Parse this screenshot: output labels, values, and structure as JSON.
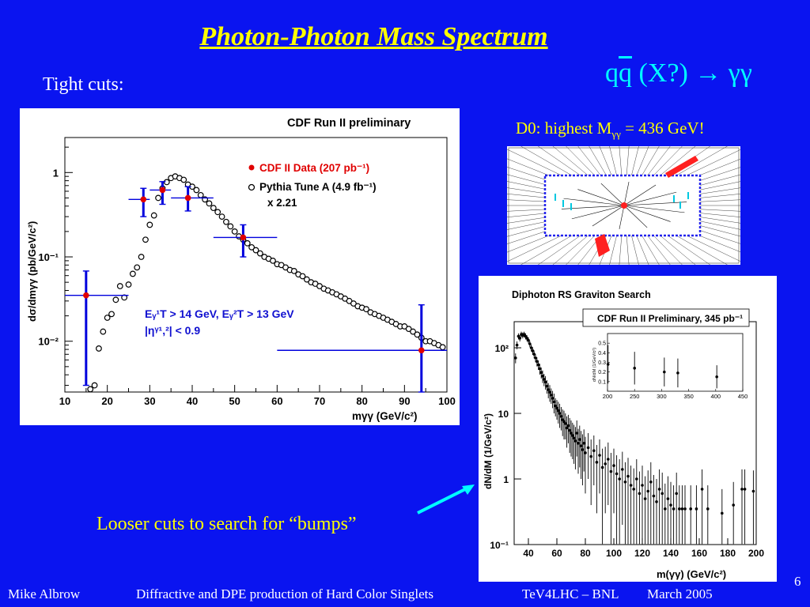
{
  "slide": {
    "title": "Photon-Photon Mass Spectrum",
    "formula": {
      "q": "q",
      "qbar": "q",
      "rest": " (X?) → γγ"
    },
    "tight_cuts": "Tight cuts:",
    "d0_label": {
      "prefix": "D0: highest M",
      "sub": "γγ",
      "suffix": " = 436 GeV!"
    },
    "looser": "Looser cuts to search for “bumps”",
    "page_number": "6",
    "footer": {
      "author": "Mike Albrow",
      "talk": "Diffractive and DPE production of Hard Color Singlets",
      "venue": "TeV4LHC – BNL",
      "date": "March 2005"
    },
    "colors": {
      "background": "#0a14f0",
      "title": "#ffff00",
      "formula": "#00ffff",
      "arrow": "#00ffff"
    }
  },
  "chart_data": [
    {
      "type": "scatter",
      "title": "CDF Run II preliminary",
      "xlabel": "mγγ (GeV/c²)",
      "ylabel": "dσ/dmγγ (pb/GeV/c²)",
      "xlim": [
        10,
        100
      ],
      "ylim": [
        0.0025,
        2.6
      ],
      "log_y": true,
      "xticks": [
        "10",
        "20",
        "30",
        "40",
        "50",
        "60",
        "70",
        "80",
        "90",
        "100"
      ],
      "yticks": [
        {
          "label": "1",
          "v": 1
        },
        {
          "label": "10⁻¹",
          "v": 0.1
        },
        {
          "label": "10⁻²",
          "v": 0.01
        }
      ],
      "legend": {
        "data_label": "CDF II Data (207 pb⁻¹)",
        "mc_label": "Pythia Tune A (4.9 fb⁻¹)",
        "mc_scale": "x 2.21",
        "placement": "top-right"
      },
      "cuts": {
        "line1": "Eᵧ¹T > 14 GeV, Eᵧ²T > 13 GeV",
        "line2": "|ηᵞ¹,²| < 0.9"
      },
      "colors": {
        "data": "#e00000",
        "error_bars": "#0000dd",
        "mc": "#000000",
        "cuts_text": "#1010d0"
      },
      "series": [
        {
          "name": "CDF II Data (207 pb⁻¹)",
          "points": [
            {
              "x": 15,
              "y": 0.035,
              "xlo": 10,
              "xhi": 25,
              "ylo": 0.003,
              "yhi": 0.068
            },
            {
              "x": 28.5,
              "y": 0.48,
              "xlo": 25,
              "xhi": 30,
              "ylo": 0.3,
              "yhi": 0.65
            },
            {
              "x": 33,
              "y": 0.62,
              "xlo": 30,
              "xhi": 35,
              "ylo": 0.42,
              "yhi": 0.78
            },
            {
              "x": 39,
              "y": 0.5,
              "xlo": 35,
              "xhi": 45,
              "ylo": 0.35,
              "yhi": 0.68
            },
            {
              "x": 52,
              "y": 0.17,
              "xlo": 45,
              "xhi": 60,
              "ylo": 0.1,
              "yhi": 0.24
            },
            {
              "x": 94,
              "y": 0.0078,
              "xlo": 60,
              "xhi": 100,
              "ylo": 0.0025,
              "yhi": 0.027
            }
          ]
        },
        {
          "name": "Pythia Tune A (4.9 fb⁻¹) x 2.21",
          "x": [
            16,
            17,
            18,
            19,
            20,
            21,
            22,
            23,
            24,
            25,
            26,
            27,
            28,
            29,
            30,
            31,
            32,
            33,
            34,
            35,
            36,
            37,
            38,
            39,
            40,
            41,
            42,
            43,
            44,
            45,
            46,
            47,
            48,
            49,
            50,
            51,
            52,
            53,
            54,
            55,
            56,
            57,
            58,
            59,
            60,
            61,
            62,
            63,
            64,
            65,
            66,
            67,
            68,
            69,
            70,
            71,
            72,
            73,
            74,
            75,
            76,
            77,
            78,
            79,
            80,
            81,
            82,
            83,
            84,
            85,
            86,
            87,
            88,
            89,
            90,
            91,
            92,
            93,
            94,
            95,
            96,
            97,
            98,
            99
          ],
          "y": [
            0.0027,
            0.003,
            0.0082,
            0.013,
            0.019,
            0.021,
            0.031,
            0.045,
            0.033,
            0.047,
            0.063,
            0.075,
            0.1,
            0.16,
            0.24,
            0.31,
            0.5,
            0.65,
            0.77,
            0.86,
            0.9,
            0.86,
            0.82,
            0.72,
            0.68,
            0.62,
            0.54,
            0.48,
            0.43,
            0.38,
            0.34,
            0.3,
            0.26,
            0.23,
            0.2,
            0.175,
            0.16,
            0.145,
            0.13,
            0.12,
            0.11,
            0.1,
            0.095,
            0.09,
            0.082,
            0.08,
            0.075,
            0.07,
            0.068,
            0.062,
            0.059,
            0.054,
            0.05,
            0.048,
            0.045,
            0.042,
            0.04,
            0.038,
            0.036,
            0.034,
            0.032,
            0.03,
            0.028,
            0.026,
            0.025,
            0.024,
            0.022,
            0.021,
            0.02,
            0.019,
            0.018,
            0.017,
            0.016,
            0.015,
            0.015,
            0.014,
            0.013,
            0.012,
            0.011,
            0.01,
            0.01,
            0.0095,
            0.009,
            0.0085
          ]
        }
      ]
    },
    {
      "type": "scatter",
      "title": "Diphoton RS Graviton Search",
      "subtitle": "CDF Run II Preliminary, 345 pb⁻¹",
      "xlabel": "m(γγ) (GeV/c²)",
      "ylabel": "dN/dM (1/GeV/c²)",
      "xlim": [
        30,
        200
      ],
      "ylim": [
        0.1,
        250
      ],
      "log_y": true,
      "xticks": [
        "40",
        "60",
        "80",
        "100",
        "120",
        "140",
        "160",
        "180",
        "200"
      ],
      "yticks": [
        {
          "label": "10²",
          "v": 100
        },
        {
          "label": "10",
          "v": 10
        },
        {
          "label": "1",
          "v": 1
        },
        {
          "label": "10⁻¹",
          "v": 0.1
        }
      ],
      "points": [
        {
          "x": 31,
          "y": 70,
          "e": 12
        },
        {
          "x": 32,
          "y": 110,
          "e": 15
        },
        {
          "x": 33,
          "y": 150,
          "e": 16
        },
        {
          "x": 34,
          "y": 140,
          "e": 15
        },
        {
          "x": 35,
          "y": 160,
          "e": 16
        },
        {
          "x": 36,
          "y": 155,
          "e": 16
        },
        {
          "x": 37,
          "y": 160,
          "e": 16
        },
        {
          "x": 38,
          "y": 150,
          "e": 16
        },
        {
          "x": 39,
          "y": 140,
          "e": 15
        },
        {
          "x": 40,
          "y": 130,
          "e": 14
        },
        {
          "x": 41,
          "y": 115,
          "e": 13
        },
        {
          "x": 42,
          "y": 100,
          "e": 12
        },
        {
          "x": 43,
          "y": 90,
          "e": 12
        },
        {
          "x": 44,
          "y": 80,
          "e": 11
        },
        {
          "x": 45,
          "y": 70,
          "e": 10
        },
        {
          "x": 46,
          "y": 62,
          "e": 10
        },
        {
          "x": 47,
          "y": 55,
          "e": 9
        },
        {
          "x": 48,
          "y": 48,
          "e": 9
        },
        {
          "x": 49,
          "y": 42,
          "e": 8
        },
        {
          "x": 50,
          "y": 37,
          "e": 8
        },
        {
          "x": 51,
          "y": 33,
          "e": 7
        },
        {
          "x": 52,
          "y": 30,
          "e": 7
        },
        {
          "x": 53,
          "y": 26,
          "e": 6
        },
        {
          "x": 54,
          "y": 23,
          "e": 6
        },
        {
          "x": 55,
          "y": 21,
          "e": 6
        },
        {
          "x": 56,
          "y": 19,
          "e": 5
        },
        {
          "x": 57,
          "y": 17,
          "e": 5
        },
        {
          "x": 58,
          "y": 15,
          "e": 5
        },
        {
          "x": 59,
          "y": 13,
          "e": 4
        },
        {
          "x": 60,
          "y": 12,
          "e": 4
        },
        {
          "x": 61,
          "y": 11,
          "e": 4
        },
        {
          "x": 62,
          "y": 10,
          "e": 4
        },
        {
          "x": 63,
          "y": 9,
          "e": 3.5
        },
        {
          "x": 64,
          "y": 8,
          "e": 3.5
        },
        {
          "x": 65,
          "y": 7.5,
          "e": 3.5
        },
        {
          "x": 66,
          "y": 7,
          "e": 3
        },
        {
          "x": 67,
          "y": 6,
          "e": 3
        },
        {
          "x": 68,
          "y": 6.5,
          "e": 3
        },
        {
          "x": 69,
          "y": 5.5,
          "e": 3
        },
        {
          "x": 70,
          "y": 5,
          "e": 2.8
        },
        {
          "x": 71,
          "y": 4.6,
          "e": 2.6
        },
        {
          "x": 72,
          "y": 4.2,
          "e": 2.5
        },
        {
          "x": 73,
          "y": 3.8,
          "e": 2.4
        },
        {
          "x": 74,
          "y": 5,
          "e": 2.8
        },
        {
          "x": 75,
          "y": 3.5,
          "e": 2.3
        },
        {
          "x": 76,
          "y": 4,
          "e": 2.5
        },
        {
          "x": 77,
          "y": 3.2,
          "e": 2.2
        },
        {
          "x": 78,
          "y": 2.8,
          "e": 2
        },
        {
          "x": 79,
          "y": 3.5,
          "e": 2.2
        },
        {
          "x": 80,
          "y": 2.5,
          "e": 1.9
        },
        {
          "x": 82,
          "y": 3,
          "e": 2
        },
        {
          "x": 84,
          "y": 2.2,
          "e": 1.8
        },
        {
          "x": 86,
          "y": 2.7,
          "e": 1.9
        },
        {
          "x": 88,
          "y": 1.8,
          "e": 1.5
        },
        {
          "x": 90,
          "y": 2.3,
          "e": 1.7
        },
        {
          "x": 92,
          "y": 1.5,
          "e": 1.4
        },
        {
          "x": 94,
          "y": 1.7,
          "e": 1.4
        },
        {
          "x": 96,
          "y": 2,
          "e": 1.6
        },
        {
          "x": 98,
          "y": 1.3,
          "e": 1.2
        },
        {
          "x": 100,
          "y": 1.6,
          "e": 1.3
        },
        {
          "x": 102,
          "y": 1.2,
          "e": 1.1
        },
        {
          "x": 104,
          "y": 1,
          "e": 1
        },
        {
          "x": 106,
          "y": 1.4,
          "e": 1.2
        },
        {
          "x": 108,
          "y": 0.9,
          "e": 0.9
        },
        {
          "x": 110,
          "y": 1.1,
          "e": 1
        },
        {
          "x": 112,
          "y": 0.8,
          "e": 0.8
        },
        {
          "x": 114,
          "y": 0.7,
          "e": 0.75
        },
        {
          "x": 116,
          "y": 1,
          "e": 1
        },
        {
          "x": 118,
          "y": 0.6,
          "e": 0.7
        },
        {
          "x": 120,
          "y": 0.8,
          "e": 0.8
        },
        {
          "x": 122,
          "y": 0.5,
          "e": 0.6
        },
        {
          "x": 124,
          "y": 0.65,
          "e": 0.7
        },
        {
          "x": 126,
          "y": 0.9,
          "e": 0.9
        },
        {
          "x": 128,
          "y": 0.55,
          "e": 0.6
        },
        {
          "x": 130,
          "y": 0.45,
          "e": 0.55
        },
        {
          "x": 132,
          "y": 0.7,
          "e": 0.7
        },
        {
          "x": 134,
          "y": 0.6,
          "e": 0.65
        },
        {
          "x": 136,
          "y": 0.35,
          "e": 0.5
        },
        {
          "x": 138,
          "y": 0.5,
          "e": 0.6
        },
        {
          "x": 140,
          "y": 0.4,
          "e": 0.5
        },
        {
          "x": 142,
          "y": 0.35,
          "e": 0.45
        },
        {
          "x": 144,
          "y": 0.6,
          "e": 0.65
        },
        {
          "x": 146,
          "y": 0.35,
          "e": 0.45
        },
        {
          "x": 148,
          "y": 0.35,
          "e": 0.45
        },
        {
          "x": 150,
          "y": 0.35,
          "e": 0.45
        },
        {
          "x": 154,
          "y": 0.35,
          "e": 0.45
        },
        {
          "x": 158,
          "y": 0.35,
          "e": 0.45
        },
        {
          "x": 162,
          "y": 0.7,
          "e": 0.7
        },
        {
          "x": 166,
          "y": 0.35,
          "e": 0.45
        },
        {
          "x": 176,
          "y": 0.3,
          "e": 0.4
        },
        {
          "x": 184,
          "y": 0.4,
          "e": 0.5
        },
        {
          "x": 190,
          "y": 0.7,
          "e": 0.7
        },
        {
          "x": 192,
          "y": 0.7,
          "e": 0.7
        },
        {
          "x": 198,
          "y": 0.65,
          "e": 0.7
        }
      ],
      "inset": {
        "ylabel": "dN/dM (1/GeV/c²)",
        "xlim": [
          200,
          450
        ],
        "ylim": [
          0,
          0.6
        ],
        "xticks": [
          "200",
          "250",
          "300",
          "350",
          "400",
          "450"
        ],
        "yticks": [
          "0.1",
          "0.2",
          "0.3",
          "0.4",
          "0.5"
        ],
        "points": [
          {
            "x": 201,
            "y": 0.28,
            "e": 0.2
          },
          {
            "x": 250,
            "y": 0.24,
            "e": 0.17
          },
          {
            "x": 305,
            "y": 0.2,
            "e": 0.15
          },
          {
            "x": 330,
            "y": 0.19,
            "e": 0.15
          },
          {
            "x": 402,
            "y": 0.15,
            "e": 0.12
          }
        ]
      }
    },
    {
      "type": "event-display",
      "name": "D0 diphoton event display",
      "photon_color": "#ff2020"
    }
  ]
}
